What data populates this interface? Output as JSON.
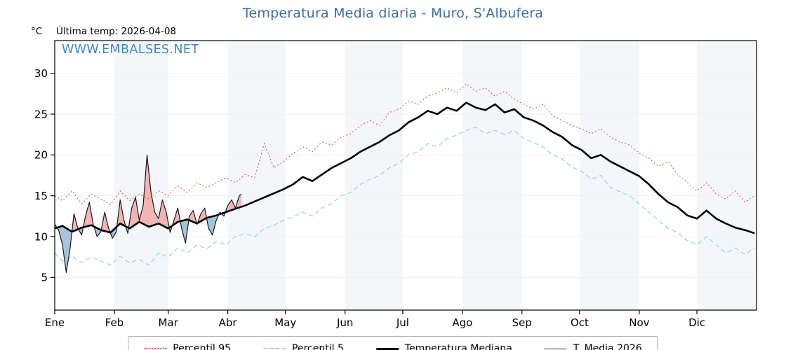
{
  "title": "Temperatura Media diaria - Muro, S'Albufera",
  "unit_label": "°C",
  "last_temp_label": "Última temp: 2026-04-08",
  "watermark": "WWW.EMBALSES.NET",
  "colors": {
    "title": "#3c6ca8",
    "watermark": "#3e86c6",
    "p95": "#e34a4a",
    "p5": "#a6d5e8",
    "median": "#000000",
    "t2026": "#1a1a1a",
    "fill_above": "#f2a2a2",
    "fill_below": "#8fb6d4",
    "band": "#f4f7fa",
    "grid": "#eef1f4"
  },
  "legend": {
    "items": [
      {
        "label": "Percentil 95"
      },
      {
        "label": "Percentil 5"
      },
      {
        "label": "Temperatura Mediana"
      },
      {
        "label": "T. Media 2026"
      }
    ]
  },
  "chart_data": {
    "type": "line",
    "title": "Temperatura Media diaria - Muro, S'Albufera",
    "xlabel": "",
    "ylabel": "°C",
    "x_unit": "day_of_year",
    "xlim": [
      1,
      366
    ],
    "ylim": [
      1,
      34
    ],
    "yticks": [
      5,
      10,
      15,
      20,
      25,
      30
    ],
    "grid": "subtle-horizontal",
    "legend_position": "bottom",
    "month_ticks": [
      {
        "label": "Ene",
        "day": 1
      },
      {
        "label": "Feb",
        "day": 32
      },
      {
        "label": "Mar",
        "day": 60
      },
      {
        "label": "Abr",
        "day": 91
      },
      {
        "label": "May",
        "day": 121
      },
      {
        "label": "Jun",
        "day": 152
      },
      {
        "label": "Jul",
        "day": 182
      },
      {
        "label": "Ago",
        "day": 213
      },
      {
        "label": "Sep",
        "day": 244
      },
      {
        "label": "Oct",
        "day": 274
      },
      {
        "label": "Nov",
        "day": 305
      },
      {
        "label": "Dic",
        "day": 335
      }
    ],
    "series": [
      {
        "name": "Percentil 95",
        "style": "dotted-red",
        "days": [
          1,
          5,
          10,
          15,
          20,
          25,
          30,
          35,
          40,
          45,
          50,
          55,
          60,
          65,
          70,
          75,
          80,
          85,
          90,
          95,
          100,
          105,
          110,
          115,
          120,
          125,
          130,
          135,
          140,
          145,
          150,
          155,
          160,
          165,
          170,
          175,
          180,
          185,
          190,
          195,
          200,
          205,
          210,
          215,
          220,
          225,
          230,
          235,
          240,
          245,
          250,
          255,
          260,
          265,
          270,
          275,
          280,
          285,
          290,
          295,
          300,
          305,
          310,
          315,
          320,
          325,
          330,
          335,
          340,
          345,
          350,
          355,
          360,
          365
        ],
        "values": [
          15.0,
          14.4,
          15.6,
          14.0,
          15.2,
          14.6,
          13.9,
          15.6,
          14.4,
          15.2,
          14.6,
          15.6,
          15.0,
          16.2,
          15.4,
          16.6,
          16.0,
          16.6,
          17.2,
          16.6,
          17.6,
          17.2,
          21.4,
          18.4,
          19.2,
          20.2,
          21.0,
          20.4,
          21.6,
          21.2,
          22.2,
          22.6,
          23.6,
          24.2,
          23.6,
          25.2,
          25.6,
          26.6,
          26.2,
          27.2,
          27.6,
          28.2,
          27.6,
          28.7,
          27.8,
          28.2,
          27.2,
          27.8,
          26.8,
          26.2,
          25.6,
          26.2,
          24.8,
          24.2,
          23.6,
          23.2,
          22.6,
          23.2,
          22.2,
          21.6,
          21.2,
          20.2,
          19.6,
          18.6,
          19.2,
          17.6,
          16.6,
          15.6,
          16.6,
          15.2,
          14.6,
          15.6,
          14.2,
          15.0
        ]
      },
      {
        "name": "Percentil 5",
        "style": "dashed-lightblue",
        "days": [
          1,
          5,
          10,
          15,
          20,
          25,
          30,
          35,
          40,
          45,
          50,
          55,
          60,
          65,
          70,
          75,
          80,
          85,
          90,
          95,
          100,
          105,
          110,
          115,
          120,
          125,
          130,
          135,
          140,
          145,
          150,
          155,
          160,
          165,
          170,
          175,
          180,
          185,
          190,
          195,
          200,
          205,
          210,
          215,
          220,
          225,
          230,
          235,
          240,
          245,
          250,
          255,
          260,
          265,
          270,
          275,
          280,
          285,
          290,
          295,
          300,
          305,
          310,
          315,
          320,
          325,
          330,
          335,
          340,
          345,
          350,
          355,
          360,
          365
        ],
        "values": [
          8.0,
          7.0,
          7.6,
          6.8,
          7.5,
          7.0,
          6.5,
          7.6,
          6.8,
          7.2,
          6.5,
          8.0,
          7.5,
          8.6,
          8.0,
          9.0,
          8.5,
          9.4,
          9.0,
          10.0,
          10.4,
          10.0,
          11.0,
          11.4,
          12.0,
          12.4,
          13.0,
          12.5,
          13.5,
          14.0,
          15.0,
          15.4,
          16.4,
          17.0,
          17.5,
          18.4,
          19.0,
          20.0,
          20.4,
          21.4,
          21.0,
          22.0,
          22.4,
          23.0,
          23.4,
          22.6,
          23.0,
          22.5,
          23.0,
          22.0,
          21.5,
          21.0,
          20.0,
          19.5,
          18.5,
          18.0,
          17.0,
          17.5,
          16.0,
          15.5,
          15.0,
          14.0,
          13.0,
          12.0,
          11.0,
          10.5,
          9.5,
          9.0,
          10.0,
          9.0,
          8.0,
          8.6,
          7.8,
          8.6
        ]
      },
      {
        "name": "Temperatura Mediana",
        "style": "thick-black",
        "days": [
          1,
          5,
          10,
          15,
          20,
          25,
          30,
          35,
          40,
          45,
          50,
          55,
          60,
          65,
          70,
          75,
          80,
          85,
          90,
          95,
          100,
          105,
          110,
          115,
          120,
          125,
          130,
          135,
          140,
          145,
          150,
          155,
          160,
          165,
          170,
          175,
          180,
          185,
          190,
          195,
          200,
          205,
          210,
          215,
          220,
          225,
          230,
          235,
          240,
          245,
          250,
          255,
          260,
          265,
          270,
          275,
          280,
          285,
          290,
          295,
          300,
          305,
          310,
          315,
          320,
          325,
          330,
          335,
          340,
          345,
          350,
          355,
          360,
          365
        ],
        "values": [
          11.0,
          11.3,
          10.6,
          11.1,
          11.4,
          10.8,
          10.5,
          11.6,
          11.0,
          11.8,
          11.2,
          11.6,
          11.0,
          11.8,
          12.1,
          11.6,
          12.3,
          12.6,
          13.0,
          13.4,
          13.8,
          14.3,
          14.8,
          15.3,
          15.8,
          16.4,
          17.3,
          16.8,
          17.6,
          18.4,
          19.0,
          19.6,
          20.4,
          21.0,
          21.6,
          22.4,
          23.0,
          24.0,
          24.6,
          25.4,
          25.0,
          25.8,
          25.4,
          26.4,
          25.8,
          25.5,
          26.2,
          25.2,
          25.6,
          24.6,
          24.2,
          23.6,
          22.8,
          22.2,
          21.2,
          20.6,
          19.6,
          20.0,
          19.2,
          18.6,
          18.0,
          17.4,
          16.4,
          15.2,
          14.2,
          13.6,
          12.6,
          12.2,
          13.2,
          12.2,
          11.6,
          11.1,
          10.8,
          10.4
        ]
      },
      {
        "name": "T. Media 2026",
        "style": "thin-black",
        "days": [
          1,
          3,
          5,
          7,
          9,
          11,
          13,
          15,
          17,
          19,
          21,
          23,
          25,
          27,
          29,
          31,
          33,
          35,
          37,
          39,
          41,
          43,
          45,
          47,
          49,
          51,
          53,
          55,
          57,
          59,
          61,
          63,
          65,
          67,
          69,
          71,
          73,
          75,
          77,
          79,
          81,
          83,
          85,
          87,
          89,
          91,
          93,
          95,
          97,
          98
        ],
        "values": [
          11.5,
          10.8,
          9.0,
          5.6,
          8.6,
          12.8,
          11.0,
          10.2,
          12.5,
          14.2,
          11.5,
          10.0,
          10.6,
          13.0,
          11.0,
          9.8,
          10.6,
          14.5,
          12.0,
          10.4,
          13.5,
          14.8,
          12.0,
          13.8,
          20.0,
          15.5,
          13.0,
          12.2,
          14.5,
          13.0,
          10.5,
          12.0,
          13.5,
          11.0,
          9.2,
          12.5,
          13.2,
          11.5,
          12.8,
          13.5,
          11.0,
          10.2,
          12.0,
          13.0,
          12.5,
          13.8,
          14.5,
          13.5,
          15.0,
          15.2
        ]
      }
    ]
  }
}
